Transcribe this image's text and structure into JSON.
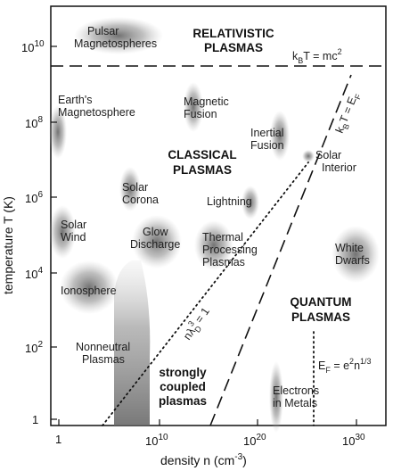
{
  "axes": {
    "x_label_main": "density n (cm",
    "x_label_exp": "-3",
    "x_label_close": ")",
    "y_label": "temperature T (K)",
    "x_ticks": [
      {
        "base": "1",
        "exp": ""
      },
      {
        "base": "10",
        "exp": "10"
      },
      {
        "base": "10",
        "exp": "20"
      },
      {
        "base": "10",
        "exp": "30"
      }
    ],
    "y_ticks": [
      {
        "base": "1",
        "exp": ""
      },
      {
        "base": "10",
        "exp": "2"
      },
      {
        "base": "10",
        "exp": "4"
      },
      {
        "base": "10",
        "exp": "6"
      },
      {
        "base": "10",
        "exp": "8"
      },
      {
        "base": "10",
        "exp": "10"
      }
    ]
  },
  "regions": {
    "relativistic": [
      "RELATIVISTIC",
      "PLASMAS"
    ],
    "classical": [
      "CLASSICAL",
      "PLASMAS"
    ],
    "quantum": [
      "QUANTUM",
      "PLASMAS"
    ],
    "strongly_coupled": [
      "strongly",
      "coupled",
      "plasmas"
    ]
  },
  "plasmas": {
    "pulsar": [
      "Pulsar",
      "Magnetospheres"
    ],
    "earth": [
      "Earth's",
      "Magnetosphere"
    ],
    "magnetic_fusion": [
      "Magnetic",
      "Fusion"
    ],
    "inertial_fusion": [
      "Inertial",
      "Fusion"
    ],
    "solar_interior": [
      "Solar",
      "Interior"
    ],
    "solar_corona": [
      "Solar",
      "Corona"
    ],
    "lightning": [
      "Lightning"
    ],
    "solar_wind": [
      "Solar",
      "Wind"
    ],
    "glow_discharge": [
      "Glow",
      "Discharge"
    ],
    "thermal_processing": [
      "Thermal",
      "Processing",
      "Plasmas"
    ],
    "white_dwarfs": [
      "White",
      "Dwarfs"
    ],
    "ionosphere": [
      "Ionosphere"
    ],
    "nonneutral": [
      "Nonneutral",
      "Plasmas"
    ],
    "electrons_in_metals": [
      "Electrons",
      "in Metals"
    ]
  },
  "boundaries": {
    "rest_mass": {
      "prefix": "k",
      "sub": "B",
      "text": "T = mc",
      "sup": "2"
    },
    "fermi": {
      "prefix": "k",
      "sub": "B",
      "text": "T = E",
      "sub2": "F"
    },
    "fermi_energy": {
      "prefix": "E",
      "sub": "F",
      "text": " = e",
      "sup": "2",
      "text2": "n",
      "sup2": "1/3"
    },
    "coupling": {
      "prefix": "n",
      "lambda": "λ",
      "sup": "3",
      "sub": "D",
      "text": " = 1"
    }
  }
}
